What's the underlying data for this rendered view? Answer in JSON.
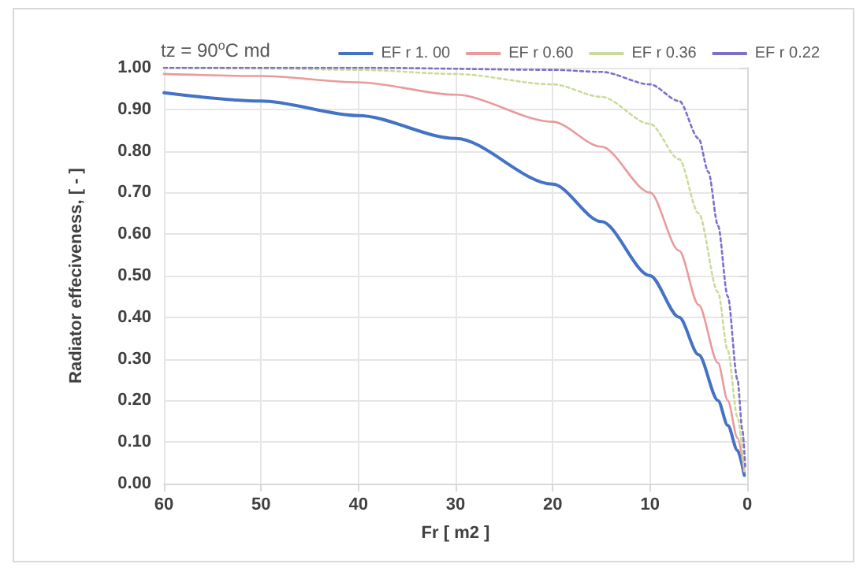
{
  "chart_data": {
    "type": "line",
    "title": "tz = 90$^{o}$C md",
    "xlabel": "Fr [ m2 ]",
    "ylabel": "Radiator effeciveness, [ - ]",
    "series": [
      {
        "name": "EF r 1. 00",
        "color": "#4472c4",
        "line_style": "solid",
        "x": [
          60,
          50,
          40,
          30,
          20,
          15,
          10,
          7,
          5,
          3,
          2,
          1,
          0.3
        ],
        "values": [
          0.94,
          0.92,
          0.885,
          0.83,
          0.72,
          0.63,
          0.5,
          0.4,
          0.31,
          0.2,
          0.14,
          0.08,
          0.02
        ]
      },
      {
        "name": "EF r 0.60",
        "color": "#e99a9a",
        "line_style": "solid",
        "x": [
          60,
          50,
          40,
          30,
          20,
          15,
          10,
          7,
          5,
          3,
          2,
          1,
          0.3
        ],
        "values": [
          0.985,
          0.98,
          0.965,
          0.935,
          0.87,
          0.81,
          0.7,
          0.56,
          0.43,
          0.29,
          0.2,
          0.11,
          0.03
        ]
      },
      {
        "name": "EF r 0.36",
        "color": "#c9dc9a",
        "line_style": "dotted",
        "x": [
          60,
          50,
          40,
          30,
          20,
          15,
          10,
          7,
          5,
          3,
          2,
          1,
          0.3
        ],
        "values": [
          1.0,
          0.998,
          0.995,
          0.985,
          0.96,
          0.93,
          0.865,
          0.78,
          0.65,
          0.46,
          0.32,
          0.16,
          0.03
        ]
      },
      {
        "name": "EF r 0.22",
        "color": "#7f6fc8",
        "line_style": "dotted",
        "x": [
          60,
          40,
          20,
          15,
          10,
          7,
          5,
          4,
          3,
          2,
          1,
          0.5,
          0.2
        ],
        "values": [
          1.0,
          1.0,
          0.995,
          0.99,
          0.96,
          0.92,
          0.83,
          0.75,
          0.62,
          0.45,
          0.25,
          0.13,
          0.04
        ]
      }
    ],
    "xlim": [
      60,
      0
    ],
    "xticks": [
      60,
      50,
      40,
      30,
      20,
      10,
      0
    ],
    "ylim": [
      0,
      1
    ],
    "yticks": [
      {
        "value": 0,
        "label": "0.00"
      },
      {
        "value": 0.1,
        "label": "0.10"
      },
      {
        "value": 0.2,
        "label": "0.20"
      },
      {
        "value": 0.3,
        "label": "0.30"
      },
      {
        "value": 0.4,
        "label": "0.40"
      },
      {
        "value": 0.5,
        "label": "0.50"
      },
      {
        "value": 0.6,
        "label": "0.60"
      },
      {
        "value": 0.7,
        "label": "0.70"
      },
      {
        "value": 0.8,
        "label": "0.80"
      },
      {
        "value": 0.9,
        "label": "0.90"
      },
      {
        "value": 1,
        "label": "1.00"
      }
    ],
    "grid": true,
    "legend": "top right",
    "marker": "none"
  }
}
